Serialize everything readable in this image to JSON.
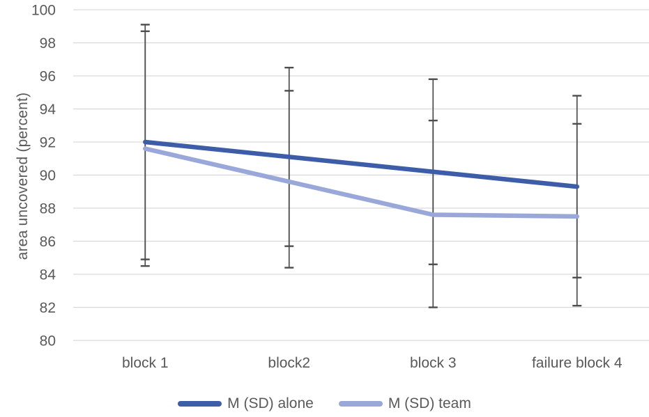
{
  "chart_data": {
    "type": "line",
    "title": "",
    "xlabel": "",
    "ylabel": "area uncovered (percent)",
    "ylim": [
      80,
      100
    ],
    "ytick_step": 2,
    "grid": true,
    "legend_position": "bottom",
    "categories": [
      "block 1",
      "block2",
      "block 3",
      "failure block 4"
    ],
    "series": [
      {
        "name": "M (SD) alone",
        "color": "#3E5DA9",
        "values": [
          92.0,
          91.1,
          90.2,
          89.3
        ],
        "error_top": [
          99.1,
          96.5,
          95.8,
          94.8
        ],
        "error_bottom": [
          84.9,
          85.7,
          84.6,
          83.8
        ]
      },
      {
        "name": "M (SD) team",
        "color": "#9AA7D9",
        "values": [
          91.6,
          89.6,
          87.6,
          87.5
        ],
        "error_top": [
          98.7,
          95.1,
          93.3,
          93.1
        ],
        "error_bottom": [
          84.5,
          84.4,
          82.0,
          82.1
        ]
      }
    ],
    "colors": {
      "error_bar": "#4D4D4D",
      "gridline": "#D9D9D9",
      "text": "#595959",
      "background": "#FFFFFF"
    }
  }
}
